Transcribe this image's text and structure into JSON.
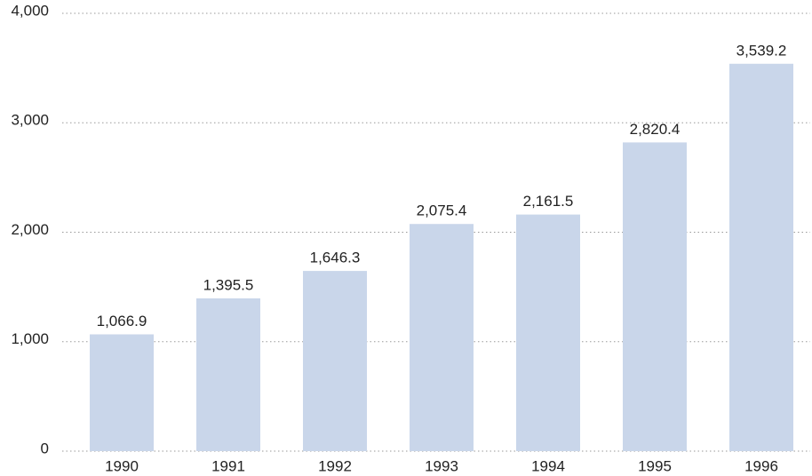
{
  "chart_data": {
    "type": "bar",
    "categories": [
      "1990",
      "1991",
      "1992",
      "1993",
      "1994",
      "1995",
      "1996"
    ],
    "values": [
      1066.9,
      1395.5,
      1646.3,
      2075.4,
      2161.5,
      2820.4,
      3539.2
    ],
    "value_labels": [
      "1,066.9",
      "1,395.5",
      "1,646.3",
      "2,075.4",
      "2,161.5",
      "2,820.4",
      "3,539.2"
    ],
    "color": "#c9d6ea",
    "ylim": [
      0,
      4000
    ],
    "yticks": [
      0,
      {
        "value": 1000,
        "label": "1,000"
      },
      {
        "value": 2000,
        "label": "2,000"
      },
      {
        "value": 3000,
        "label": "3,000"
      },
      {
        "value": 4000,
        "label": "4,000"
      }
    ],
    "grid": true
  }
}
